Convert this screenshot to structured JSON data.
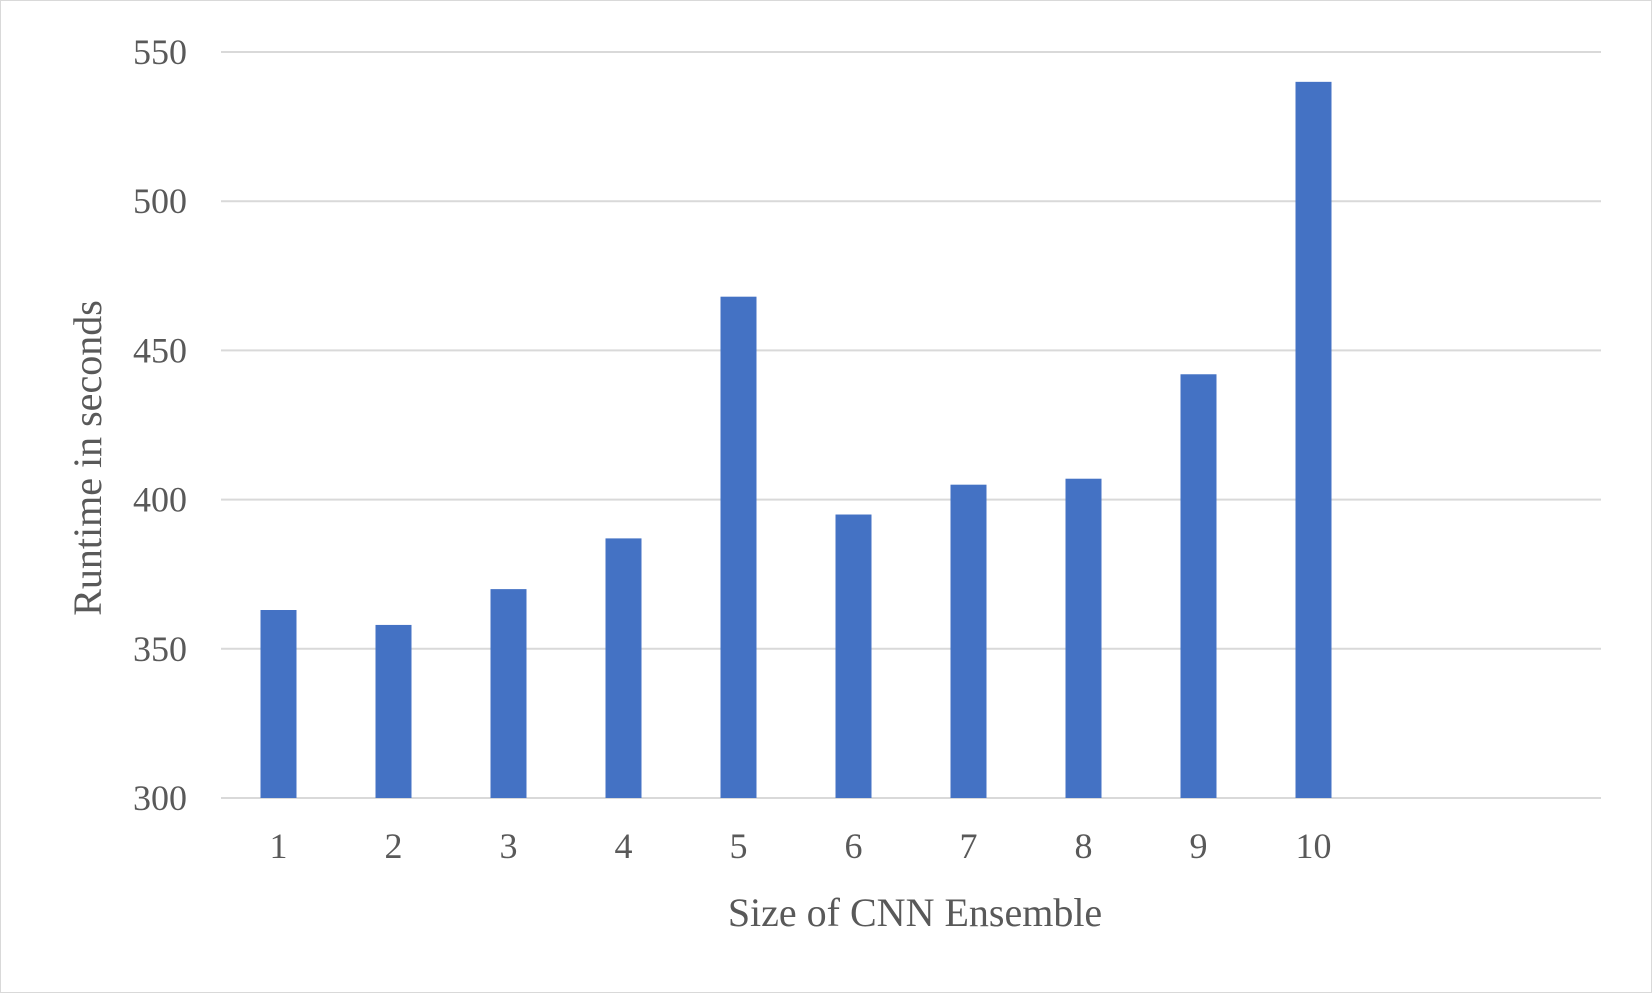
{
  "chart_data": {
    "type": "bar",
    "categories": [
      "1",
      "2",
      "3",
      "4",
      "5",
      "6",
      "7",
      "8",
      "9",
      "10"
    ],
    "values": [
      363,
      358,
      370,
      387,
      468,
      395,
      405,
      407,
      442,
      540
    ],
    "title": "",
    "xlabel": "Size of CNN Ensemble",
    "ylabel": "Runtime in seconds",
    "ylim": [
      300,
      550
    ],
    "yticks": [
      "300",
      "350",
      "400",
      "450",
      "500",
      "550"
    ],
    "grid": true,
    "legend": "none",
    "colors": {
      "bar": "#4472C4",
      "grid": "#d9d9d9",
      "text": "#595959"
    }
  }
}
